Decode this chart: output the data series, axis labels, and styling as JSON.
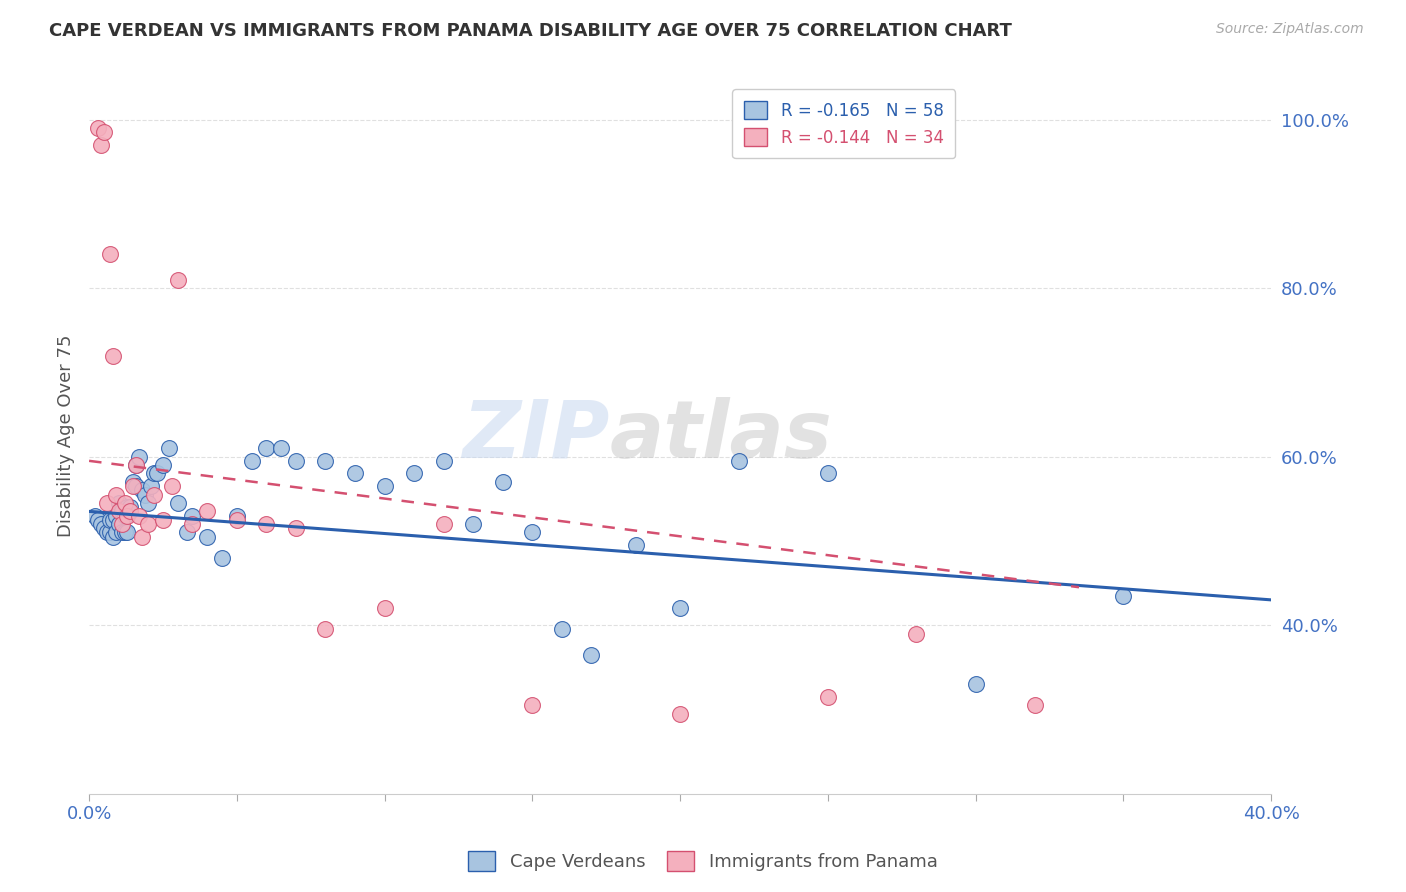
{
  "title": "CAPE VERDEAN VS IMMIGRANTS FROM PANAMA DISABILITY AGE OVER 75 CORRELATION CHART",
  "source": "Source: ZipAtlas.com",
  "ylabel": "Disability Age Over 75",
  "xlim": [
    0.0,
    0.4
  ],
  "ylim": [
    0.2,
    1.05
  ],
  "yticks": [
    0.4,
    0.6,
    0.8,
    1.0
  ],
  "ytick_labels": [
    "40.0%",
    "60.0%",
    "80.0%",
    "100.0%"
  ],
  "xticks": [
    0.0,
    0.05,
    0.1,
    0.15,
    0.2,
    0.25,
    0.3,
    0.35,
    0.4
  ],
  "xtick_labels": [
    "0.0%",
    "",
    "",
    "",
    "",
    "",
    "",
    "",
    "40.0%"
  ],
  "legend_entries": [
    {
      "label": "R = -0.165   N = 58"
    },
    {
      "label": "R = -0.144   N = 34"
    }
  ],
  "cape_verdean_x": [
    0.002,
    0.003,
    0.004,
    0.005,
    0.006,
    0.007,
    0.007,
    0.008,
    0.008,
    0.009,
    0.009,
    0.01,
    0.01,
    0.011,
    0.011,
    0.012,
    0.012,
    0.013,
    0.013,
    0.014,
    0.015,
    0.016,
    0.016,
    0.017,
    0.018,
    0.019,
    0.02,
    0.021,
    0.022,
    0.023,
    0.025,
    0.027,
    0.03,
    0.033,
    0.035,
    0.04,
    0.045,
    0.05,
    0.055,
    0.06,
    0.065,
    0.07,
    0.08,
    0.09,
    0.1,
    0.11,
    0.12,
    0.13,
    0.14,
    0.15,
    0.16,
    0.17,
    0.185,
    0.2,
    0.22,
    0.25,
    0.3,
    0.35
  ],
  "cape_verdean_y": [
    0.53,
    0.525,
    0.52,
    0.515,
    0.51,
    0.51,
    0.525,
    0.525,
    0.505,
    0.51,
    0.53,
    0.52,
    0.545,
    0.51,
    0.535,
    0.53,
    0.51,
    0.51,
    0.54,
    0.54,
    0.57,
    0.565,
    0.59,
    0.6,
    0.56,
    0.555,
    0.545,
    0.565,
    0.58,
    0.58,
    0.59,
    0.61,
    0.545,
    0.51,
    0.53,
    0.505,
    0.48,
    0.53,
    0.595,
    0.61,
    0.61,
    0.595,
    0.595,
    0.58,
    0.565,
    0.58,
    0.595,
    0.52,
    0.57,
    0.51,
    0.395,
    0.365,
    0.495,
    0.42,
    0.595,
    0.58,
    0.33,
    0.435
  ],
  "panama_x": [
    0.003,
    0.004,
    0.005,
    0.006,
    0.007,
    0.008,
    0.009,
    0.01,
    0.011,
    0.012,
    0.013,
    0.014,
    0.015,
    0.016,
    0.017,
    0.018,
    0.02,
    0.022,
    0.025,
    0.028,
    0.03,
    0.035,
    0.04,
    0.05,
    0.06,
    0.07,
    0.08,
    0.1,
    0.12,
    0.15,
    0.2,
    0.25,
    0.28,
    0.32
  ],
  "panama_y": [
    0.99,
    0.97,
    0.985,
    0.545,
    0.84,
    0.72,
    0.555,
    0.535,
    0.52,
    0.545,
    0.53,
    0.535,
    0.565,
    0.59,
    0.53,
    0.505,
    0.52,
    0.555,
    0.525,
    0.565,
    0.81,
    0.52,
    0.535,
    0.525,
    0.52,
    0.515,
    0.395,
    0.42,
    0.52,
    0.305,
    0.295,
    0.315,
    0.39,
    0.305
  ],
  "blue_line_x": [
    0.0,
    0.4
  ],
  "blue_line_y": [
    0.535,
    0.43
  ],
  "pink_line_x": [
    0.0,
    0.335
  ],
  "pink_line_y": [
    0.595,
    0.445
  ],
  "blue_color": "#2b5fad",
  "pink_color": "#d45070",
  "blue_dot_color": "#a8c4e0",
  "pink_dot_color": "#f4b0be",
  "watermark_zip": "ZIP",
  "watermark_atlas": "atlas",
  "background_color": "#ffffff",
  "grid_color": "#e0e0e0"
}
